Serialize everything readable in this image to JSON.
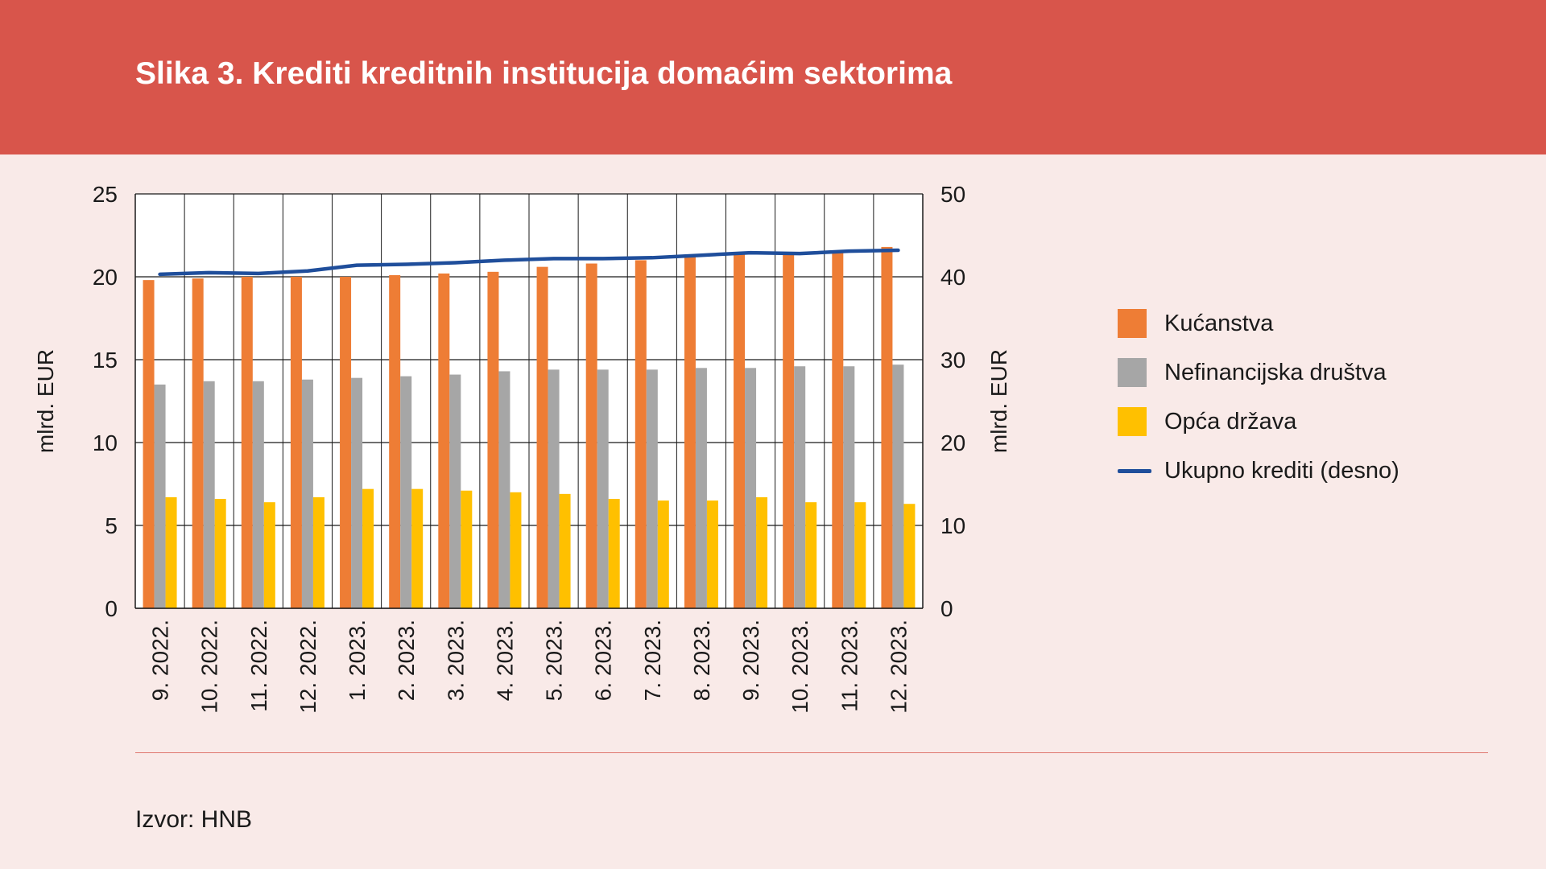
{
  "header": {
    "title": "Slika 3. Krediti kreditnih institucija domaćim sektorima"
  },
  "source": "Izvor: HNB",
  "colors": {
    "header_bg": "#d8554b",
    "page_bg": "#f9eae8",
    "kucanstva": "#ee7d35",
    "nefinancijska": "#a6a6a6",
    "opca_drzava": "#ffc000",
    "ukupno": "#1f4e9b"
  },
  "chart_data": {
    "type": "bar",
    "ylabel": "mlrd. EUR",
    "y2label": "mlrd. EUR",
    "ylim": [
      0,
      25
    ],
    "y2lim": [
      0,
      50
    ],
    "yticks": [
      "0",
      "5",
      "10",
      "15",
      "20",
      "25"
    ],
    "y2ticks": [
      "0",
      "10",
      "20",
      "30",
      "40",
      "50"
    ],
    "grid": true,
    "legend_position": "right",
    "categories": [
      "9. 2022.",
      "10. 2022.",
      "11. 2022.",
      "12. 2022.",
      "1. 2023.",
      "2. 2023.",
      "3. 2023.",
      "4. 2023.",
      "5. 2023.",
      "6. 2023.",
      "7. 2023.",
      "8. 2023.",
      "9. 2023.",
      "10. 2023.",
      "11. 2023.",
      "12. 2023."
    ],
    "series": [
      {
        "name": "Kućanstva",
        "type": "bar",
        "axis": "left",
        "values": [
          19.8,
          19.9,
          20.0,
          20.0,
          20.0,
          20.1,
          20.2,
          20.3,
          20.6,
          20.8,
          21.0,
          21.2,
          21.4,
          21.5,
          21.6,
          21.8
        ]
      },
      {
        "name": "Nefinancijska društva",
        "type": "bar",
        "axis": "left",
        "values": [
          13.5,
          13.7,
          13.7,
          13.8,
          13.9,
          14.0,
          14.1,
          14.3,
          14.4,
          14.4,
          14.4,
          14.5,
          14.5,
          14.6,
          14.6,
          14.7
        ]
      },
      {
        "name": "Opća država",
        "type": "bar",
        "axis": "left",
        "values": [
          6.7,
          6.6,
          6.4,
          6.7,
          7.2,
          7.2,
          7.1,
          7.0,
          6.9,
          6.6,
          6.5,
          6.5,
          6.7,
          6.4,
          6.4,
          6.3
        ]
      },
      {
        "name": "Ukupno krediti  (desno)",
        "type": "line",
        "axis": "right",
        "values": [
          40.3,
          40.5,
          40.4,
          40.7,
          41.4,
          41.5,
          41.7,
          42.0,
          42.2,
          42.2,
          42.3,
          42.6,
          42.9,
          42.8,
          43.1,
          43.2
        ]
      }
    ]
  }
}
